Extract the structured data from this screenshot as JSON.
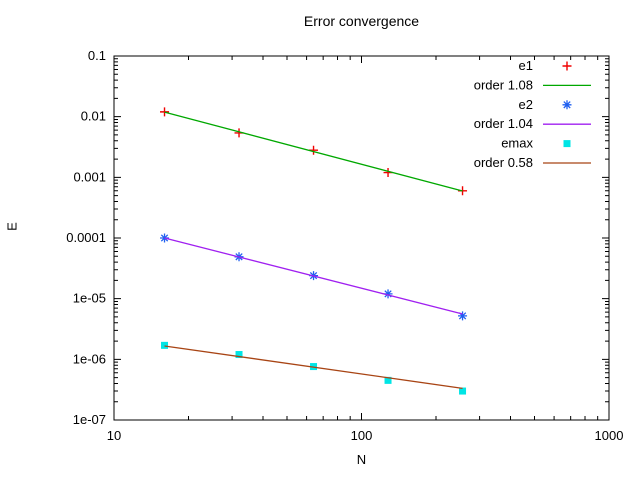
{
  "title": "Error convergence",
  "xlabel": "N",
  "ylabel": "E",
  "chart_data": {
    "type": "scatter",
    "title": "Error convergence",
    "xlabel": "N",
    "ylabel": "E",
    "x_scale": "log",
    "y_scale": "log",
    "grid": false,
    "legend_position": "top-right-inside",
    "x": [
      16,
      32,
      64,
      128,
      256
    ],
    "series": [
      {
        "name": "e1",
        "kind": "points",
        "marker": "plus",
        "color": "#f00000",
        "values": [
          0.012,
          0.0054,
          0.0028,
          0.0012,
          0.0006
        ]
      },
      {
        "name": "order 1.08",
        "kind": "line",
        "color": "#00a800",
        "order": 1.08,
        "ref_N": 16,
        "ref_E": 0.0119,
        "x_start": 16,
        "x_end": 256
      },
      {
        "name": "e2",
        "kind": "points",
        "marker": "asterisk",
        "color": "#2060f0",
        "values": [
          0.0001,
          4.9e-05,
          2.4e-05,
          1.2e-05,
          5.2e-06
        ]
      },
      {
        "name": "order 1.04",
        "kind": "line",
        "color": "#a020f0",
        "order": 1.04,
        "ref_N": 16,
        "ref_E": 0.0001,
        "x_start": 16,
        "x_end": 256
      },
      {
        "name": "emax",
        "kind": "points",
        "marker": "square",
        "color": "#00e5e5",
        "values": [
          1.7e-06,
          1.2e-06,
          7.6e-07,
          4.5e-07,
          3e-07
        ]
      },
      {
        "name": "order 0.58",
        "kind": "line",
        "color": "#a84414",
        "order": 0.58,
        "ref_N": 16,
        "ref_E": 1.66e-06,
        "x_start": 16,
        "x_end": 256
      }
    ],
    "axes": {
      "x": {
        "scale": "log",
        "min": 10,
        "max": 1000,
        "ticks": [
          10,
          100,
          1000
        ],
        "tick_labels": [
          "10",
          "100",
          "1000"
        ]
      },
      "y": {
        "scale": "log",
        "min": 1e-07,
        "max": 0.1,
        "ticks": [
          0.1,
          0.01,
          0.001,
          0.0001,
          1e-05,
          1e-06,
          1e-07
        ],
        "tick_labels": [
          "0.1",
          "0.01",
          "0.001",
          "0.0001",
          "1e-05",
          "1e-06",
          "1e-07"
        ]
      }
    }
  }
}
